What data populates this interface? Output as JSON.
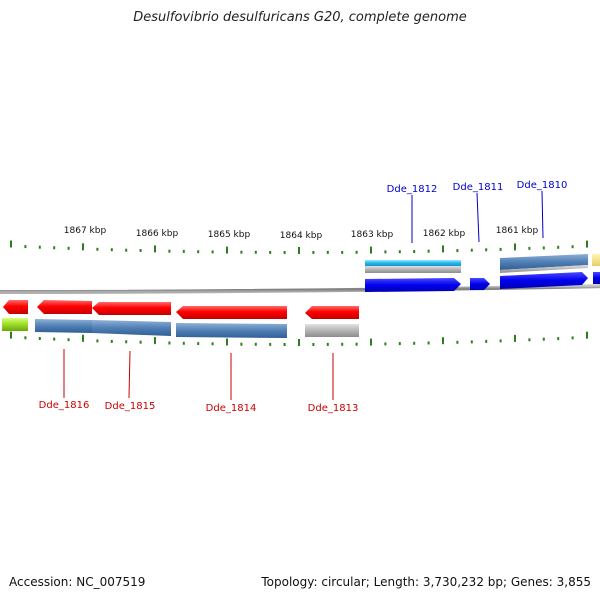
{
  "title": "Desulfovibrio desulfuricans G20, complete genome",
  "footer": {
    "accession": "Accession: NC_007519",
    "summary": "Topology: circular; Length: 3,730,232 bp; Genes: 3,855"
  },
  "colors": {
    "forward_label": "#0000cc",
    "reverse_label": "#cc0000",
    "tick": "#2e7d1f",
    "backbone": "#8a8a8a"
  },
  "scale": {
    "unit": "kbp",
    "ticks_kbp": [
      1867,
      1866,
      1865,
      1864,
      1863,
      1862,
      1861
    ],
    "tick_labels": [
      "1867 kbp",
      "1866 kbp",
      "1865 kbp",
      "1864 kbp",
      "1863 kbp",
      "1862 kbp",
      "1861 kbp"
    ]
  },
  "genes": [
    {
      "name": "Dde_1812",
      "strand": "forward"
    },
    {
      "name": "Dde_1811",
      "strand": "forward"
    },
    {
      "name": "Dde_1810",
      "strand": "forward"
    },
    {
      "name": "Dde_1816",
      "strand": "reverse"
    },
    {
      "name": "Dde_1815",
      "strand": "reverse"
    },
    {
      "name": "Dde_1814",
      "strand": "reverse"
    },
    {
      "name": "Dde_1813",
      "strand": "reverse"
    }
  ]
}
